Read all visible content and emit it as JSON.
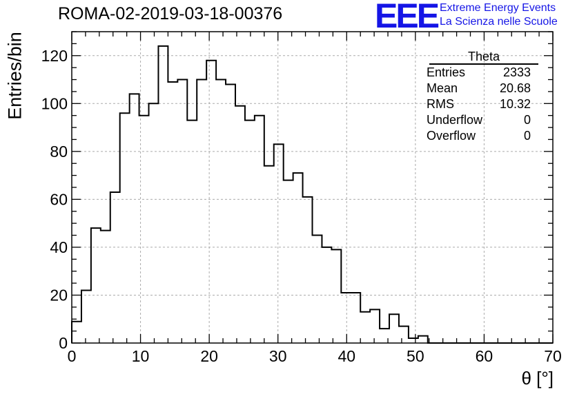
{
  "header": {
    "title": "ROMA-02-2019-03-18-00376"
  },
  "logo": {
    "text": "EEE",
    "line1": "Extreme Energy Events",
    "line2": "La Scienza nelle Scuole",
    "color": "#1515e6"
  },
  "stats": {
    "title": "Theta",
    "rows": [
      {
        "label": "Entries",
        "value": "2333"
      },
      {
        "label": "Mean",
        "value": "20.68"
      },
      {
        "label": "RMS",
        "value": "10.32"
      },
      {
        "label": "Underflow",
        "value": "0"
      },
      {
        "label": "Overflow",
        "value": "0"
      }
    ]
  },
  "chart_data": {
    "type": "histogram",
    "title": "ROMA-02-2019-03-18-00376",
    "xlabel": "θ [°]",
    "ylabel": "Entries/bin",
    "xlim": [
      0,
      70
    ],
    "ylim": [
      0,
      130
    ],
    "bin_width": 1.4,
    "grid": true,
    "xticks": [
      0,
      10,
      20,
      30,
      40,
      50,
      60,
      70
    ],
    "yticks": [
      0,
      20,
      40,
      60,
      80,
      100,
      120
    ],
    "values": [
      9,
      22,
      48,
      47,
      63,
      96,
      104,
      95,
      100,
      124,
      109,
      110,
      93,
      110,
      118,
      110,
      108,
      99,
      93,
      95,
      74,
      83,
      68,
      71,
      61,
      45,
      40,
      39,
      21,
      21,
      13,
      14,
      6,
      12,
      7,
      2,
      3,
      0,
      0,
      0,
      0,
      0,
      0,
      0,
      0,
      0,
      0,
      0,
      0,
      0
    ]
  }
}
